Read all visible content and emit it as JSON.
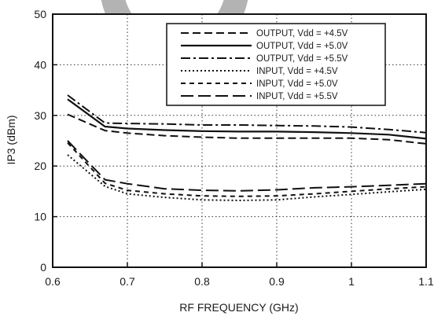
{
  "chart_data": {
    "type": "line",
    "title": "",
    "xlabel": "RF FREQUENCY (GHz)",
    "ylabel": "IP3 (dBm)",
    "xlim": [
      0.6,
      1.1
    ],
    "ylim": [
      0,
      50
    ],
    "x_ticks": [
      "0.6",
      "0.7",
      "0.8",
      "0.9",
      "1",
      "1.1"
    ],
    "y_ticks": [
      "0",
      "10",
      "20",
      "30",
      "40",
      "50"
    ],
    "grid": "dotted",
    "legend_position": "top-right",
    "watermark_color": "#b3b3b3",
    "x": [
      0.62,
      0.67,
      0.7,
      0.75,
      0.8,
      0.85,
      0.9,
      0.95,
      1.0,
      1.05,
      1.1
    ],
    "series": [
      {
        "name": "OUTPUT, Vdd = +4.5V",
        "style": "dash",
        "values": [
          30.2,
          27.0,
          26.5,
          26.0,
          25.7,
          25.5,
          25.5,
          25.5,
          25.5,
          25.2,
          24.4
        ]
      },
      {
        "name": "OUTPUT, Vdd = +5.0V",
        "style": "solid",
        "values": [
          33.2,
          27.8,
          27.4,
          27.1,
          26.9,
          26.8,
          26.8,
          26.7,
          26.5,
          26.2,
          25.4
        ]
      },
      {
        "name": "OUTPUT, Vdd = +5.5V",
        "style": "dash-dot",
        "values": [
          34.0,
          28.5,
          28.4,
          28.3,
          28.1,
          28.1,
          28.0,
          27.9,
          27.7,
          27.2,
          26.6
        ]
      },
      {
        "name": "INPUT, Vdd = +4.5V",
        "style": "dot",
        "values": [
          22.2,
          16.0,
          14.5,
          13.8,
          13.3,
          13.2,
          13.3,
          13.9,
          14.4,
          14.9,
          15.4
        ]
      },
      {
        "name": "INPUT, Vdd = +5.0V",
        "style": "short-dash",
        "values": [
          24.6,
          16.6,
          15.2,
          14.5,
          14.1,
          14.0,
          14.1,
          14.5,
          15.0,
          15.5,
          15.9
        ]
      },
      {
        "name": "INPUT, Vdd = +5.5V",
        "style": "long-dash",
        "values": [
          25.0,
          17.3,
          16.5,
          15.5,
          15.2,
          15.1,
          15.3,
          15.7,
          15.9,
          16.2,
          16.5
        ]
      }
    ]
  }
}
